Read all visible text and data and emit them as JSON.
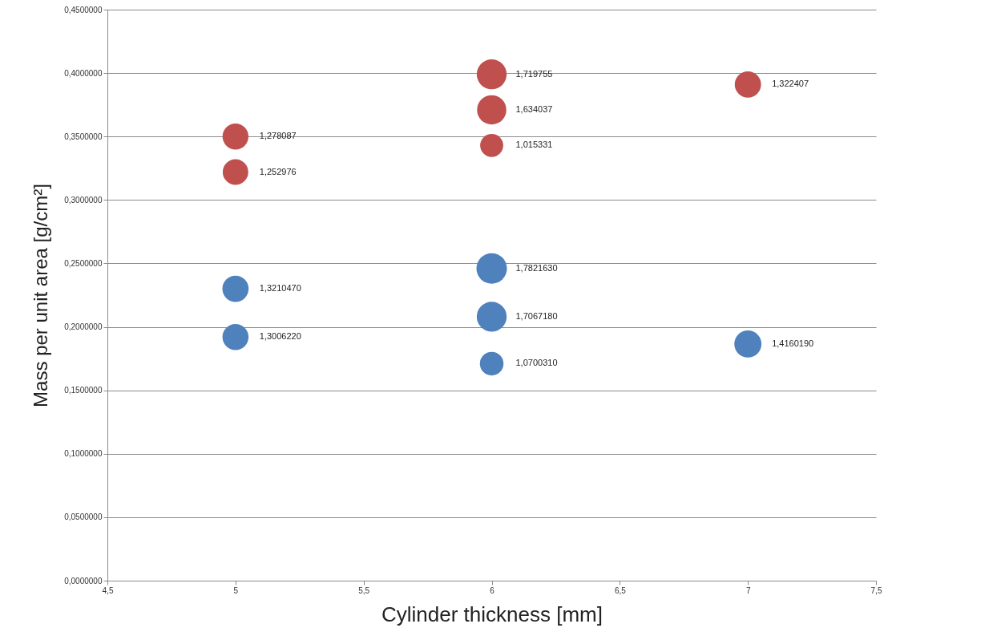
{
  "chart_data": {
    "type": "bubble",
    "xlabel": "Cylinder thickness [mm]",
    "ylabel": "Mass per unit area  [g/cm²]",
    "xlim": [
      4.5,
      7.5
    ],
    "xticks": [
      {
        "value": 4.5,
        "label": "4,5"
      },
      5,
      {
        "value": 5.5,
        "label": "5,5"
      },
      6,
      {
        "value": 6.5,
        "label": "6,5"
      },
      7,
      {
        "value": 7.5,
        "label": "7,5"
      }
    ],
    "ylim": [
      0,
      0.45
    ],
    "yticks": [
      {
        "value": 0,
        "label": "0,0000000"
      },
      {
        "value": 0.05,
        "label": "0,0500000"
      },
      {
        "value": 0.1,
        "label": "0,1000000"
      },
      {
        "value": 0.15,
        "label": "0,1500000"
      },
      {
        "value": 0.2,
        "label": "0,2000000"
      },
      {
        "value": 0.25,
        "label": "0,2500000"
      },
      {
        "value": 0.3,
        "label": "0,3000000"
      },
      {
        "value": 0.35,
        "label": "0,3500000"
      },
      {
        "value": 0.4,
        "label": "0,4000000"
      },
      {
        "value": 0.45,
        "label": "0,4500000"
      }
    ],
    "grid": "y",
    "marker": "circle",
    "series": [
      {
        "color": "#4f81bd",
        "x": [
          5,
          5,
          6,
          6,
          6,
          7
        ],
        "values": [
          0.23,
          0.192,
          0.246,
          0.208,
          0.171,
          0.1865
        ],
        "sizes": [
          0.74,
          0.73,
          1,
          0.96,
          0.6,
          0.79
        ],
        "value_labels": [
          "1,3210470",
          "1,3006220",
          "1,7821630",
          "1,7067180",
          "1,0700310",
          "1,4160190"
        ]
      },
      {
        "color": "#c0504d",
        "x": [
          5,
          5,
          6,
          6,
          6,
          7
        ],
        "values": [
          0.35,
          0.322,
          0.399,
          0.371,
          0.343,
          0.391
        ],
        "sizes": [
          0.72,
          0.7,
          0.96,
          0.92,
          0.57,
          0.74
        ],
        "value_labels": [
          "1,278087",
          "1,252976",
          "1,719755",
          "1,634037",
          "1,015331",
          "1,322407"
        ]
      }
    ]
  }
}
